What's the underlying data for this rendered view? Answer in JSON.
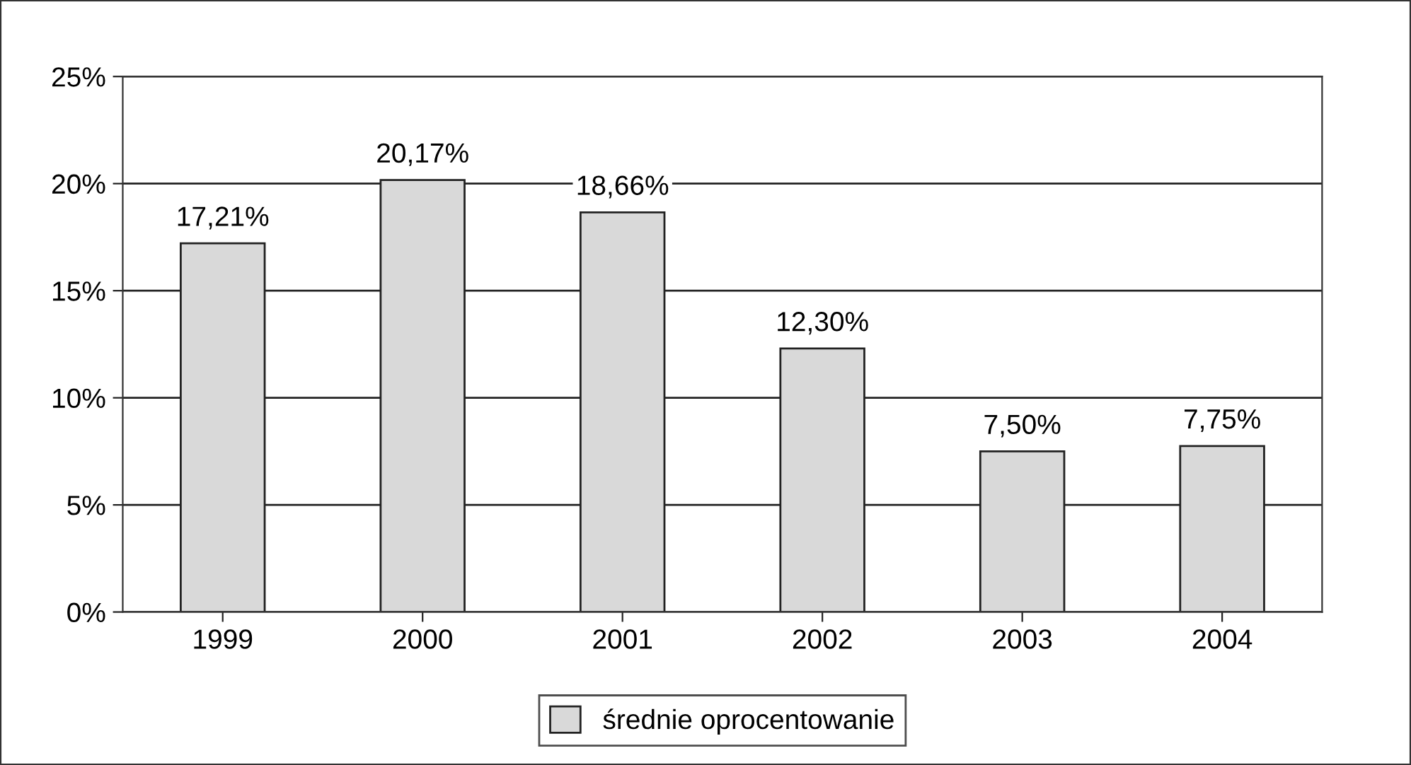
{
  "chart_data": {
    "type": "bar",
    "categories": [
      "1999",
      "2000",
      "2001",
      "2002",
      "2003",
      "2004"
    ],
    "series": [
      {
        "name": "średnie oprocentowanie",
        "color": "#d9d9d9",
        "values": [
          17.21,
          20.17,
          18.66,
          12.3,
          7.5,
          7.75
        ],
        "value_labels": [
          "17,21%",
          "20,17%",
          "18,66%",
          "12,30%",
          "7,50%",
          "7,75%"
        ]
      }
    ],
    "ylim": [
      0,
      25
    ],
    "yticks": [
      {
        "value": 0,
        "label": "0%"
      },
      {
        "value": 5,
        "label": "5%"
      },
      {
        "value": 10,
        "label": "10%"
      },
      {
        "value": 15,
        "label": "15%"
      },
      {
        "value": 20,
        "label": "20%"
      },
      {
        "value": 25,
        "label": "25%"
      }
    ],
    "grid": "y",
    "legend": "bottom"
  }
}
